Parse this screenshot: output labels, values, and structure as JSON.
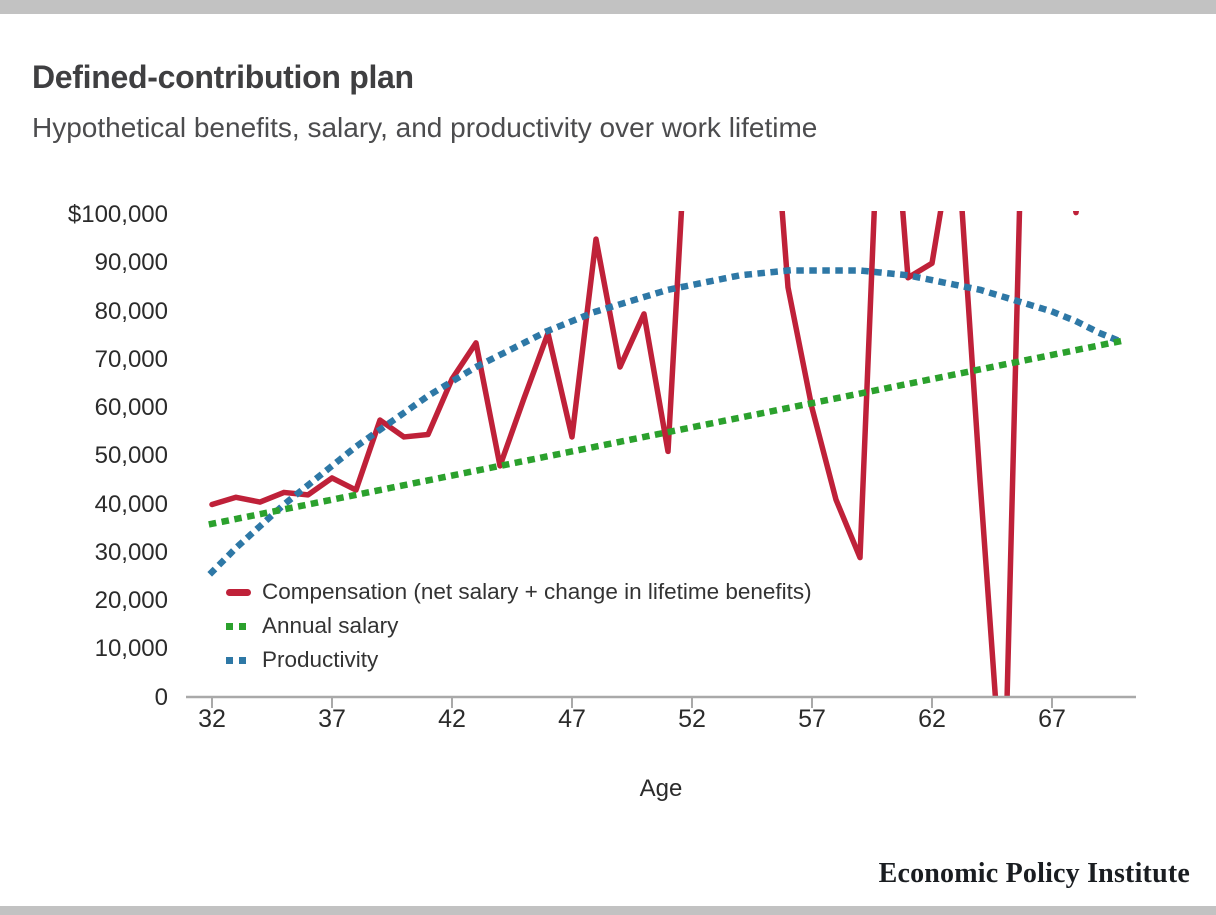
{
  "header": {
    "title": "Defined-contribution plan",
    "subtitle": "Hypothetical benefits, salary, and productivity over work lifetime"
  },
  "footer": {
    "brand": "Economic Policy Institute"
  },
  "colors": {
    "accent_bar": "#c2c2c2",
    "axis": "#a9a9a9",
    "title_text": "#3f3f41",
    "subtitle_text": "#4c4c4e",
    "axis_text": "#2b2b2b",
    "legend_text": "#333333"
  },
  "chart_data": {
    "type": "line",
    "title": "Defined-contribution plan",
    "subtitle": "Hypothetical benefits, salary, and productivity over work lifetime",
    "xlabel": "Age",
    "ylabel": "",
    "xlim": [
      32,
      70
    ],
    "ylim": [
      0,
      100000
    ],
    "grid": false,
    "legend_position": "inside-lower-left",
    "clip_note": "Series are clipped at the $100,000 axis top; compensation line leaves and re-enters the visible area and dips below $0 near age 65",
    "x": [
      32,
      33,
      34,
      35,
      36,
      37,
      38,
      39,
      40,
      41,
      42,
      43,
      44,
      45,
      46,
      47,
      48,
      49,
      50,
      51,
      52,
      53,
      54,
      55,
      56,
      57,
      58,
      59,
      60,
      61,
      62,
      63,
      64,
      65,
      66,
      67,
      68,
      69,
      70
    ],
    "x_ticks": [
      {
        "label": "32",
        "value": 32
      },
      {
        "label": "37",
        "value": 37
      },
      {
        "label": "42",
        "value": 42
      },
      {
        "label": "47",
        "value": 47
      },
      {
        "label": "52",
        "value": 52
      },
      {
        "label": "57",
        "value": 57
      },
      {
        "label": "62",
        "value": 62
      },
      {
        "label": "67",
        "value": 67
      }
    ],
    "y_ticks": [
      {
        "label": "$100,000",
        "value": 100000
      },
      {
        "label": "90,000",
        "value": 90000
      },
      {
        "label": "80,000",
        "value": 80000
      },
      {
        "label": "70,000",
        "value": 70000
      },
      {
        "label": "60,000",
        "value": 60000
      },
      {
        "label": "50,000",
        "value": 50000
      },
      {
        "label": "40,000",
        "value": 40000
      },
      {
        "label": "30,000",
        "value": 30000
      },
      {
        "label": "20,000",
        "value": 20000
      },
      {
        "label": "10,000",
        "value": 10000
      },
      {
        "label": "0",
        "value": 0
      }
    ],
    "series": [
      {
        "name": "Compensation (net salary + change in lifetime benefits)",
        "color": "#bf2139",
        "style": "solid",
        "values": [
          40000,
          41500,
          40500,
          42500,
          42000,
          45500,
          43000,
          57500,
          54000,
          54500,
          66000,
          73500,
          48000,
          62000,
          75500,
          54000,
          95000,
          68500,
          79500,
          51000,
          140000,
          155000,
          155000,
          150000,
          85000,
          60000,
          41000,
          29000,
          150000,
          87000,
          90000,
          120000,
          45000,
          -25000,
          170000,
          130000,
          100500,
          140000,
          140000
        ]
      },
      {
        "name": "Annual salary",
        "color": "#2ba12d",
        "style": "dotted",
        "values": [
          36000,
          37000,
          38000,
          39000,
          40000,
          41000,
          42000,
          43000,
          44000,
          45000,
          46000,
          47000,
          48000,
          49000,
          50000,
          51000,
          52000,
          53000,
          54000,
          55000,
          56000,
          57000,
          58000,
          59000,
          60000,
          61000,
          62000,
          63000,
          64000,
          65000,
          66000,
          67000,
          68000,
          69000,
          70000,
          71000,
          72000,
          73000,
          74000
        ]
      },
      {
        "name": "Productivity",
        "color": "#2e78a6",
        "style": "dotted",
        "values": [
          26000,
          31000,
          35500,
          40000,
          44000,
          48000,
          52000,
          55500,
          59000,
          62500,
          65500,
          68500,
          71000,
          73500,
          76000,
          78000,
          80000,
          81500,
          83000,
          84500,
          85500,
          86500,
          87500,
          88000,
          88500,
          88500,
          88500,
          88500,
          88000,
          87500,
          86500,
          85500,
          84500,
          83000,
          81500,
          80000,
          78000,
          75500,
          73500
        ]
      }
    ]
  }
}
